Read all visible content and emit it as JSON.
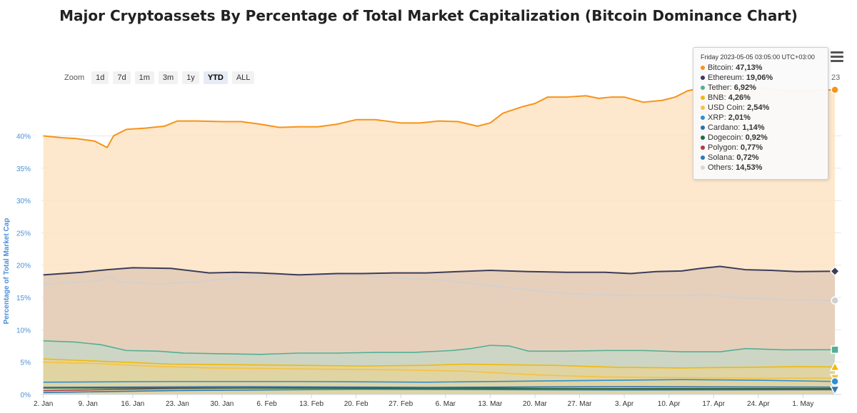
{
  "title": "Major Cryptoassets By Percentage of Total Market Capitalization (Bitcoin Dominance Chart)",
  "zoom": {
    "label": "Zoom",
    "buttons": [
      "1d",
      "7d",
      "1m",
      "3m",
      "1y",
      "YTD",
      "ALL"
    ],
    "active": "YTD"
  },
  "tooltip": {
    "header": "Friday 2023-05-05 03:05:00 UTC+03:00",
    "rows": [
      {
        "name": "Bitcoin",
        "value": "47,13%",
        "color": "#f7931a"
      },
      {
        "name": "Ethereum",
        "value": "19,06%",
        "color": "#3c3c5a"
      },
      {
        "name": "Tether",
        "value": "6,92%",
        "color": "#50af95"
      },
      {
        "name": "BNB",
        "value": "4,26%",
        "color": "#f0b90b"
      },
      {
        "name": "USD Coin",
        "value": "2,54%",
        "color": "#f5c242"
      },
      {
        "name": "XRP",
        "value": "2,01%",
        "color": "#2f90d0"
      },
      {
        "name": "Cardano",
        "value": "1,14%",
        "color": "#2a6fb0"
      },
      {
        "name": "Dogecoin",
        "value": "0,92%",
        "color": "#1f6b4a"
      },
      {
        "name": "Polygon",
        "value": "0,77%",
        "color": "#b03a4a"
      },
      {
        "name": "Solana",
        "value": "0,72%",
        "color": "#2a7ab8"
      },
      {
        "name": "Others",
        "value": "14,53%",
        "color": "#d8d8d8"
      }
    ],
    "clipped_text": "23"
  },
  "chart_data": {
    "type": "area",
    "title": "Major Cryptoassets By Percentage of Total Market Capitalization (Bitcoin Dominance Chart)",
    "xlabel": "",
    "ylabel": "Percentage of Total Market Cap",
    "ylim": [
      0,
      47
    ],
    "yticks": [
      0,
      5,
      10,
      15,
      20,
      25,
      30,
      35,
      40
    ],
    "ytick_labels": [
      "0%",
      "5%",
      "10%",
      "15%",
      "20%",
      "25%",
      "30%",
      "35%",
      "40%"
    ],
    "xlim_days": [
      -0.3,
      125
    ],
    "xticks": [
      {
        "day": 0,
        "label": "2. Jan"
      },
      {
        "day": 7,
        "label": "9. Jan"
      },
      {
        "day": 14,
        "label": "16. Jan"
      },
      {
        "day": 21,
        "label": "23. Jan"
      },
      {
        "day": 28,
        "label": "30. Jan"
      },
      {
        "day": 35,
        "label": "6. Feb"
      },
      {
        "day": 42,
        "label": "13. Feb"
      },
      {
        "day": 49,
        "label": "20. Feb"
      },
      {
        "day": 56,
        "label": "27. Feb"
      },
      {
        "day": 63,
        "label": "6. Mar"
      },
      {
        "day": 70,
        "label": "13. Mar"
      },
      {
        "day": 77,
        "label": "20. Mar"
      },
      {
        "day": 84,
        "label": "27. Mar"
      },
      {
        "day": 91,
        "label": "3. Apr"
      },
      {
        "day": 98,
        "label": "10. Apr"
      },
      {
        "day": 105,
        "label": "17. Apr"
      },
      {
        "day": 112,
        "label": "24. Apr"
      },
      {
        "day": 119,
        "label": "1. May"
      }
    ],
    "series": [
      {
        "name": "Bitcoin",
        "color": "#f7931a",
        "fill": "#fde4c4",
        "marker": "circle",
        "points": [
          [
            0,
            40.0
          ],
          [
            3,
            39.7
          ],
          [
            5,
            39.6
          ],
          [
            8,
            39.2
          ],
          [
            10,
            38.2
          ],
          [
            11,
            40.0
          ],
          [
            13,
            41.0
          ],
          [
            16,
            41.2
          ],
          [
            19,
            41.5
          ],
          [
            21,
            42.3
          ],
          [
            24,
            42.3
          ],
          [
            28,
            42.2
          ],
          [
            31,
            42.2
          ],
          [
            34,
            41.8
          ],
          [
            37,
            41.3
          ],
          [
            40,
            41.4
          ],
          [
            43,
            41.4
          ],
          [
            46,
            41.8
          ],
          [
            49,
            42.5
          ],
          [
            52,
            42.5
          ],
          [
            56,
            42.0
          ],
          [
            59,
            42.0
          ],
          [
            62,
            42.3
          ],
          [
            65,
            42.2
          ],
          [
            68,
            41.5
          ],
          [
            70,
            42.0
          ],
          [
            72,
            43.5
          ],
          [
            75,
            44.5
          ],
          [
            77,
            45.0
          ],
          [
            79,
            46.0
          ],
          [
            82,
            46.0
          ],
          [
            85,
            46.2
          ],
          [
            87,
            45.8
          ],
          [
            89,
            46.0
          ],
          [
            91,
            46.0
          ],
          [
            94,
            45.2
          ],
          [
            97,
            45.5
          ],
          [
            99,
            46.0
          ],
          [
            101,
            47.0
          ],
          [
            104,
            47.5
          ],
          [
            108,
            47.3
          ],
          [
            112,
            47.4
          ],
          [
            116,
            47.0
          ],
          [
            120,
            47.0
          ],
          [
            124,
            47.13
          ]
        ]
      },
      {
        "name": "Ethereum",
        "color": "#3c3c5a",
        "fill": "#e2cbb7",
        "marker": "diamond",
        "points": [
          [
            0,
            18.5
          ],
          [
            6,
            18.9
          ],
          [
            10,
            19.3
          ],
          [
            14,
            19.6
          ],
          [
            20,
            19.5
          ],
          [
            26,
            18.8
          ],
          [
            30,
            18.9
          ],
          [
            34,
            18.8
          ],
          [
            40,
            18.5
          ],
          [
            46,
            18.7
          ],
          [
            50,
            18.7
          ],
          [
            55,
            18.8
          ],
          [
            60,
            18.8
          ],
          [
            65,
            19.0
          ],
          [
            70,
            19.2
          ],
          [
            76,
            19.0
          ],
          [
            82,
            18.9
          ],
          [
            88,
            18.9
          ],
          [
            92,
            18.7
          ],
          [
            96,
            19.0
          ],
          [
            100,
            19.1
          ],
          [
            103,
            19.5
          ],
          [
            106,
            19.8
          ],
          [
            110,
            19.3
          ],
          [
            114,
            19.2
          ],
          [
            118,
            19.0
          ],
          [
            124,
            19.06
          ]
        ]
      },
      {
        "name": "Others",
        "color": "#d0d0d0",
        "fill": null,
        "marker": "circle",
        "points": [
          [
            0,
            17.0
          ],
          [
            5,
            17.4
          ],
          [
            9,
            17.6
          ],
          [
            10,
            18.4
          ],
          [
            12,
            17.4
          ],
          [
            18,
            17.1
          ],
          [
            24,
            17.4
          ],
          [
            30,
            18.0
          ],
          [
            34,
            18.3
          ],
          [
            38,
            18.6
          ],
          [
            44,
            18.5
          ],
          [
            50,
            18.4
          ],
          [
            56,
            18.0
          ],
          [
            62,
            17.7
          ],
          [
            66,
            17.3
          ],
          [
            70,
            16.8
          ],
          [
            76,
            16.2
          ],
          [
            82,
            15.6
          ],
          [
            88,
            15.4
          ],
          [
            96,
            15.3
          ],
          [
            104,
            15.4
          ],
          [
            110,
            14.9
          ],
          [
            116,
            14.7
          ],
          [
            124,
            14.53
          ]
        ]
      },
      {
        "name": "Tether",
        "color": "#50af95",
        "fill": "#c8d7c6",
        "marker": "square",
        "points": [
          [
            0,
            8.3
          ],
          [
            5,
            8.1
          ],
          [
            9,
            7.7
          ],
          [
            13,
            6.8
          ],
          [
            18,
            6.7
          ],
          [
            22,
            6.4
          ],
          [
            28,
            6.3
          ],
          [
            34,
            6.2
          ],
          [
            40,
            6.4
          ],
          [
            46,
            6.4
          ],
          [
            52,
            6.5
          ],
          [
            58,
            6.5
          ],
          [
            64,
            6.8
          ],
          [
            67,
            7.1
          ],
          [
            70,
            7.6
          ],
          [
            73,
            7.5
          ],
          [
            76,
            6.7
          ],
          [
            82,
            6.7
          ],
          [
            88,
            6.8
          ],
          [
            94,
            6.8
          ],
          [
            100,
            6.6
          ],
          [
            106,
            6.6
          ],
          [
            110,
            7.1
          ],
          [
            116,
            6.9
          ],
          [
            124,
            6.92
          ]
        ]
      },
      {
        "name": "BNB",
        "color": "#f0b90b",
        "fill": "#e3d49c",
        "marker": "triangle",
        "points": [
          [
            0,
            5.5
          ],
          [
            10,
            5.1
          ],
          [
            20,
            4.7
          ],
          [
            30,
            4.6
          ],
          [
            40,
            4.5
          ],
          [
            50,
            4.4
          ],
          [
            60,
            4.5
          ],
          [
            66,
            4.7
          ],
          [
            72,
            4.6
          ],
          [
            80,
            4.5
          ],
          [
            90,
            4.2
          ],
          [
            100,
            4.1
          ],
          [
            110,
            4.2
          ],
          [
            118,
            4.3
          ],
          [
            124,
            4.26
          ]
        ]
      },
      {
        "name": "USD Coin",
        "color": "#f5c242",
        "fill": null,
        "marker": "triangle-down",
        "points": [
          [
            0,
            5.0
          ],
          [
            8,
            4.8
          ],
          [
            16,
            4.4
          ],
          [
            26,
            4.1
          ],
          [
            36,
            4.0
          ],
          [
            46,
            3.9
          ],
          [
            56,
            3.8
          ],
          [
            66,
            3.6
          ],
          [
            72,
            3.3
          ],
          [
            78,
            3.0
          ],
          [
            88,
            2.7
          ],
          [
            100,
            2.6
          ],
          [
            112,
            2.5
          ],
          [
            124,
            2.54
          ]
        ]
      },
      {
        "name": "XRP",
        "color": "#2f90d0",
        "fill": null,
        "marker": "circle",
        "points": [
          [
            0,
            1.9
          ],
          [
            20,
            2.0
          ],
          [
            40,
            2.0
          ],
          [
            60,
            1.9
          ],
          [
            80,
            2.1
          ],
          [
            100,
            2.3
          ],
          [
            112,
            2.2
          ],
          [
            124,
            2.01
          ]
        ]
      },
      {
        "name": "Cardano",
        "color": "#2a6fb0",
        "fill": null,
        "marker": "none",
        "points": [
          [
            0,
            1.1
          ],
          [
            30,
            1.2
          ],
          [
            60,
            1.1
          ],
          [
            90,
            1.2
          ],
          [
            124,
            1.14
          ]
        ]
      },
      {
        "name": "Dogecoin",
        "color": "#1f6b4a",
        "fill": null,
        "marker": "none",
        "points": [
          [
            0,
            1.0
          ],
          [
            30,
            1.0
          ],
          [
            60,
            0.95
          ],
          [
            90,
            0.9
          ],
          [
            124,
            0.92
          ]
        ]
      },
      {
        "name": "Polygon",
        "color": "#b03a4a",
        "fill": null,
        "marker": "none",
        "points": [
          [
            0,
            0.6
          ],
          [
            20,
            0.9
          ],
          [
            50,
            1.1
          ],
          [
            80,
            0.9
          ],
          [
            124,
            0.77
          ]
        ]
      },
      {
        "name": "Solana",
        "color": "#2a7ab8",
        "fill": null,
        "marker": "triangle-down",
        "points": [
          [
            0,
            0.3
          ],
          [
            20,
            0.6
          ],
          [
            50,
            0.8
          ],
          [
            90,
            0.7
          ],
          [
            124,
            0.72
          ]
        ]
      }
    ]
  }
}
